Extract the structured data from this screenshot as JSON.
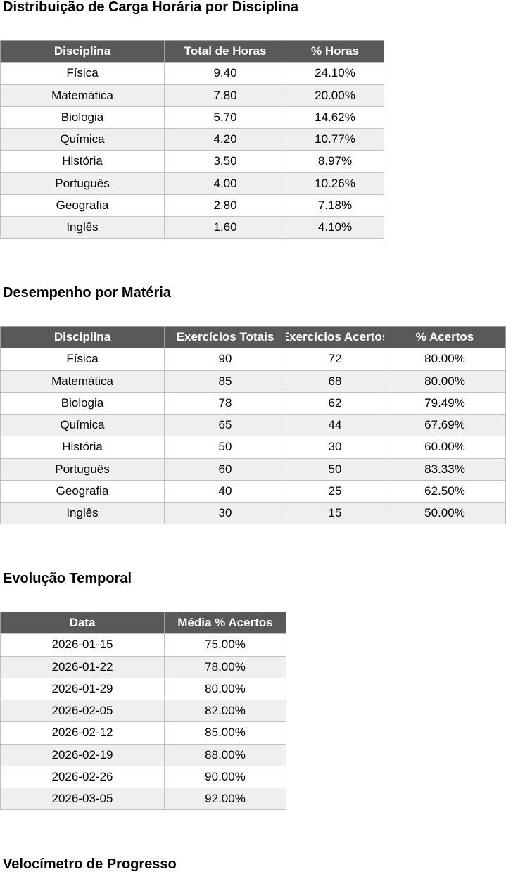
{
  "sections": [
    {
      "title": "Distribuição de Carga Horária por Disciplina",
      "table": {
        "header": [
          "Disciplina",
          "Total de Horas",
          "% Horas"
        ],
        "rows": [
          [
            "Física",
            "9.40",
            "24.10%"
          ],
          [
            "Matemática",
            "7.80",
            "20.00%"
          ],
          [
            "Biologia",
            "5.70",
            "14.62%"
          ],
          [
            "Química",
            "4.20",
            "10.77%"
          ],
          [
            "História",
            "3.50",
            "8.97%"
          ],
          [
            "Português",
            "4.00",
            "10.26%"
          ],
          [
            "Geografia",
            "2.80",
            "7.18%"
          ],
          [
            "Inglês",
            "1.60",
            "4.10%"
          ]
        ]
      }
    },
    {
      "title": "Desempenho por Matéria",
      "table": {
        "header": [
          "Disciplina",
          "Exercícios Totais",
          "Exercícios Acertos",
          "% Acertos"
        ],
        "rows": [
          [
            "Física",
            "90",
            "72",
            "80.00%"
          ],
          [
            "Matemática",
            "85",
            "68",
            "80.00%"
          ],
          [
            "Biologia",
            "78",
            "62",
            "79.49%"
          ],
          [
            "Química",
            "65",
            "44",
            "67.69%"
          ],
          [
            "História",
            "50",
            "30",
            "60.00%"
          ],
          [
            "Português",
            "60",
            "50",
            "83.33%"
          ],
          [
            "Geografia",
            "40",
            "25",
            "62.50%"
          ],
          [
            "Inglês",
            "30",
            "15",
            "50.00%"
          ]
        ]
      }
    },
    {
      "title": "Evolução Temporal",
      "table": {
        "header": [
          "Data",
          "Média % Acertos"
        ],
        "rows": [
          [
            "2026-01-15",
            "75.00%"
          ],
          [
            "2026-01-22",
            "78.00%"
          ],
          [
            "2026-01-29",
            "80.00%"
          ],
          [
            "2026-02-05",
            "82.00%"
          ],
          [
            "2026-02-12",
            "85.00%"
          ],
          [
            "2026-02-19",
            "88.00%"
          ],
          [
            "2026-02-26",
            "90.00%"
          ],
          [
            "2026-03-05",
            "92.00%"
          ]
        ]
      }
    },
    {
      "title": "Velocímetro de Progresso"
    }
  ]
}
